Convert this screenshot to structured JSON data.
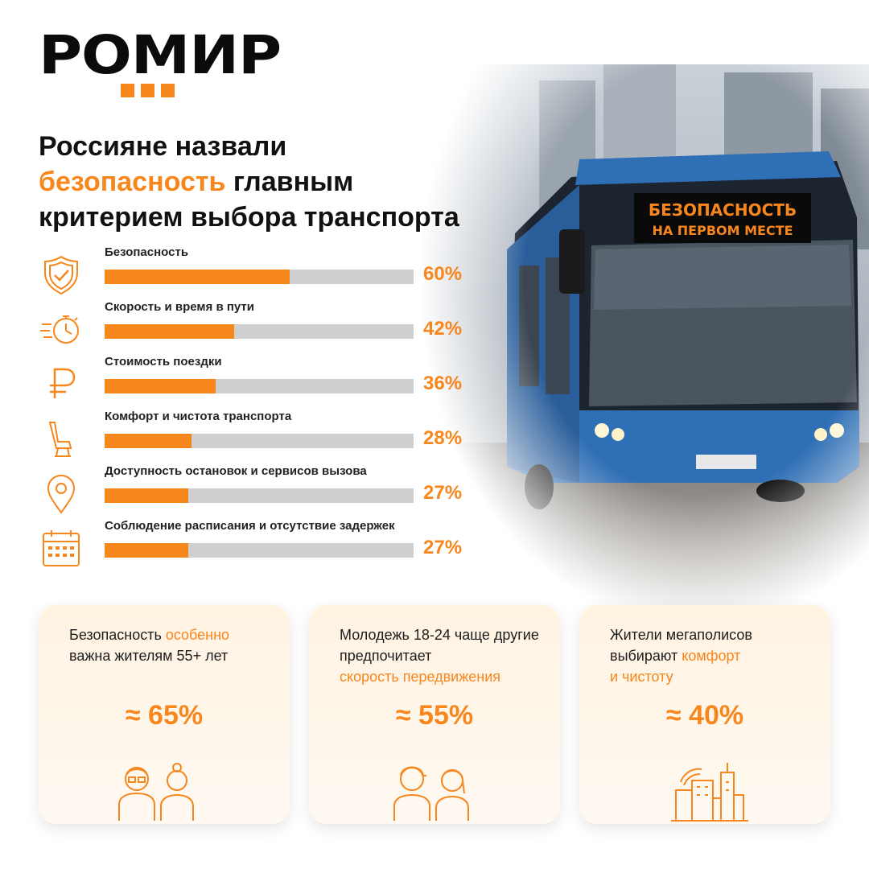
{
  "brand": {
    "logo": "РОМИР",
    "accent": "#f7861c"
  },
  "headline": {
    "line1": "Россияне назвали",
    "accent": "безопасность",
    "line2_rest": " главным",
    "line3": "критерием выбора транспорта"
  },
  "bus_sign": {
    "line1": "БЕЗОПАСНОСТЬ",
    "line2": "НА ПЕРВОМ МЕСТЕ"
  },
  "chart_data": {
    "type": "bar",
    "orientation": "horizontal",
    "max": 100,
    "categories": [
      "Безопасность",
      "Скорость и время в пути",
      "Стоимость поездки",
      "Комфорт и чистота транспорта",
      "Доступность остановок и сервисов вызова",
      "Соблюдение расписания и отсутствие задержек"
    ],
    "values": [
      60,
      42,
      36,
      28,
      27,
      27
    ],
    "value_labels": [
      "60%",
      "42%",
      "36%",
      "28%",
      "27%",
      "27%"
    ],
    "icons": [
      "shield-check-icon",
      "stopwatch-icon",
      "ruble-icon",
      "seat-icon",
      "location-pin-icon",
      "calendar-icon"
    ],
    "colors": {
      "fill": "#f7861c",
      "track": "#cfcfcf"
    }
  },
  "cards": [
    {
      "pre": "Безопасность ",
      "accent": "особенно",
      "post": "важна жителям 55+ лет",
      "value": "≈ 65%",
      "icon": "seniors-icon"
    },
    {
      "pre": "Молодежь 18-24 чаще другие предпочитает",
      "accent": "скорость передвижения",
      "post": "",
      "value": "≈ 55%",
      "icon": "young-people-icon"
    },
    {
      "pre": "Жители мегаполисов выбирают ",
      "accent": "комфорт",
      "post": "и чистоту",
      "value": "≈ 40%",
      "icon": "city-icon"
    }
  ]
}
